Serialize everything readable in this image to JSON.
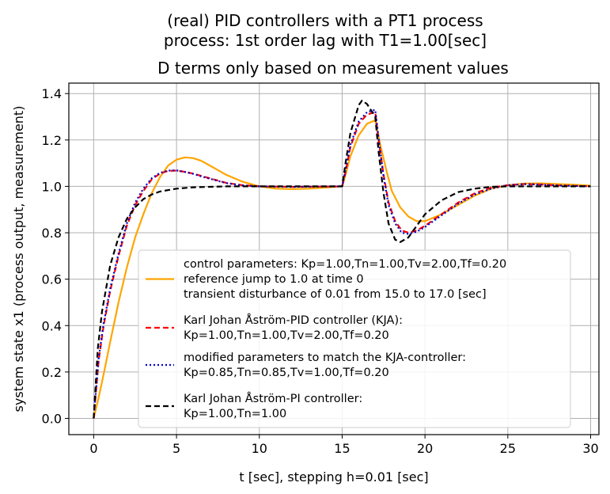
{
  "suptitle": [
    "(real) PID controllers with a PT1 process",
    "process: 1st order lag with T1=1.00[sec]"
  ],
  "chart_data": {
    "type": "line",
    "title": "D terms only based on measurement values",
    "xlabel": "t [sec], stepping h=0.01 [sec]",
    "ylabel": "system state x1 (process output, measurement)",
    "xlim": [
      -1.5,
      30.5
    ],
    "ylim": [
      -0.07,
      1.445
    ],
    "xticks": [
      0,
      5,
      10,
      15,
      20,
      25,
      30
    ],
    "xtick_labels": [
      "0",
      "5",
      "10",
      "15",
      "20",
      "25",
      "30"
    ],
    "yticks": [
      0.0,
      0.2,
      0.4,
      0.6,
      0.8,
      1.0,
      1.2,
      1.4
    ],
    "ytick_labels": [
      "0.0",
      "0.2",
      "0.4",
      "0.6",
      "0.8",
      "1.0",
      "1.2",
      "1.4"
    ],
    "grid": true,
    "legend_position": "lower-right",
    "series": [
      {
        "name": "control parameters: Kp=1.00,Tn=1.00,Tv=2.00,Tf=0.20\nreference jump to 1.0 at time 0\ntransient disturbance of 0.01 from 15.0 to 17.0 [sec]",
        "color": "#ffa500",
        "dash": "solid",
        "points": [
          [
            0,
            0
          ],
          [
            0.3,
            0.09
          ],
          [
            0.6,
            0.19
          ],
          [
            1,
            0.33
          ],
          [
            1.5,
            0.5
          ],
          [
            2,
            0.65
          ],
          [
            2.5,
            0.78
          ],
          [
            3,
            0.88
          ],
          [
            3.5,
            0.97
          ],
          [
            4,
            1.04
          ],
          [
            4.5,
            1.09
          ],
          [
            5,
            1.115
          ],
          [
            5.5,
            1.125
          ],
          [
            6,
            1.122
          ],
          [
            6.5,
            1.11
          ],
          [
            7,
            1.09
          ],
          [
            8,
            1.05
          ],
          [
            9,
            1.02
          ],
          [
            10,
            1.0
          ],
          [
            11,
            0.99
          ],
          [
            12,
            0.988
          ],
          [
            13,
            0.99
          ],
          [
            14,
            0.995
          ],
          [
            15,
            1.0
          ],
          [
            15.2,
            1.05
          ],
          [
            15.5,
            1.13
          ],
          [
            16,
            1.22
          ],
          [
            16.5,
            1.27
          ],
          [
            17,
            1.285
          ],
          [
            17.3,
            1.18
          ],
          [
            17.7,
            1.06
          ],
          [
            18,
            0.98
          ],
          [
            18.5,
            0.91
          ],
          [
            19,
            0.87
          ],
          [
            19.5,
            0.85
          ],
          [
            20,
            0.85
          ],
          [
            21,
            0.88
          ],
          [
            22,
            0.92
          ],
          [
            23,
            0.96
          ],
          [
            24,
            0.99
          ],
          [
            25,
            1.005
          ],
          [
            26,
            1.012
          ],
          [
            27,
            1.013
          ],
          [
            28,
            1.01
          ],
          [
            29,
            1.007
          ],
          [
            30,
            1.003
          ]
        ]
      },
      {
        "name": "Karl Johan Åström-PID controller (KJA):\nKp=1.00,Tn=1.00,Tv=2.00,Tf=0.20",
        "color": "#ff0000",
        "dash": "dashed",
        "points": [
          [
            0,
            0
          ],
          [
            0.3,
            0.25
          ],
          [
            0.6,
            0.4
          ],
          [
            1,
            0.55
          ],
          [
            1.5,
            0.7
          ],
          [
            2,
            0.83
          ],
          [
            2.5,
            0.92
          ],
          [
            3,
            0.98
          ],
          [
            3.5,
            1.03
          ],
          [
            4,
            1.055
          ],
          [
            4.5,
            1.067
          ],
          [
            5,
            1.068
          ],
          [
            5.5,
            1.063
          ],
          [
            6,
            1.055
          ],
          [
            6.5,
            1.045
          ],
          [
            7,
            1.035
          ],
          [
            8,
            1.015
          ],
          [
            9,
            1.005
          ],
          [
            10,
            1.0
          ],
          [
            12,
            0.998
          ],
          [
            15,
            1.0
          ],
          [
            15.2,
            1.06
          ],
          [
            15.5,
            1.17
          ],
          [
            16,
            1.27
          ],
          [
            16.5,
            1.31
          ],
          [
            17,
            1.32
          ],
          [
            17.2,
            1.2
          ],
          [
            17.5,
            1.05
          ],
          [
            17.8,
            0.93
          ],
          [
            18.2,
            0.85
          ],
          [
            18.6,
            0.81
          ],
          [
            19,
            0.8
          ],
          [
            19.5,
            0.81
          ],
          [
            20,
            0.83
          ],
          [
            21,
            0.88
          ],
          [
            22,
            0.93
          ],
          [
            23,
            0.97
          ],
          [
            24,
            0.995
          ],
          [
            25,
            1.005
          ],
          [
            26,
            1.01
          ],
          [
            27,
            1.008
          ],
          [
            28,
            1.004
          ],
          [
            30,
            1.0
          ]
        ]
      },
      {
        "name": "modified parameters to match the KJA-controller:\nKp=0.85,Tn=0.85,Tv=1.00,Tf=0.20",
        "color": "#0000cc",
        "dash": "dotted",
        "points": [
          [
            0,
            0
          ],
          [
            0.3,
            0.26
          ],
          [
            0.6,
            0.41
          ],
          [
            1,
            0.56
          ],
          [
            1.5,
            0.71
          ],
          [
            2,
            0.84
          ],
          [
            2.5,
            0.93
          ],
          [
            3,
            0.99
          ],
          [
            3.5,
            1.035
          ],
          [
            4,
            1.058
          ],
          [
            4.5,
            1.068
          ],
          [
            5,
            1.069
          ],
          [
            5.5,
            1.062
          ],
          [
            6,
            1.054
          ],
          [
            6.5,
            1.043
          ],
          [
            7,
            1.033
          ],
          [
            8,
            1.014
          ],
          [
            9,
            1.004
          ],
          [
            10,
            1.0
          ],
          [
            12,
            0.998
          ],
          [
            15,
            1.0
          ],
          [
            15.2,
            1.07
          ],
          [
            15.5,
            1.18
          ],
          [
            16,
            1.28
          ],
          [
            16.5,
            1.32
          ],
          [
            17,
            1.33
          ],
          [
            17.2,
            1.21
          ],
          [
            17.5,
            1.04
          ],
          [
            17.8,
            0.92
          ],
          [
            18.2,
            0.84
          ],
          [
            18.6,
            0.8
          ],
          [
            19,
            0.795
          ],
          [
            19.5,
            0.805
          ],
          [
            20,
            0.825
          ],
          [
            21,
            0.875
          ],
          [
            22,
            0.925
          ],
          [
            23,
            0.965
          ],
          [
            24,
            0.99
          ],
          [
            25,
            1.005
          ],
          [
            26,
            1.01
          ],
          [
            27,
            1.008
          ],
          [
            28,
            1.004
          ],
          [
            30,
            1.0
          ]
        ]
      },
      {
        "name": "Karl Johan Åström-PI controller:\nKp=1.00,Tn=1.00",
        "color": "#000000",
        "dash": "dashed",
        "points": [
          [
            0,
            0
          ],
          [
            0.25,
            0.3
          ],
          [
            0.5,
            0.46
          ],
          [
            1,
            0.66
          ],
          [
            1.5,
            0.78
          ],
          [
            2,
            0.86
          ],
          [
            2.5,
            0.91
          ],
          [
            3,
            0.945
          ],
          [
            3.5,
            0.965
          ],
          [
            4,
            0.978
          ],
          [
            5,
            0.99
          ],
          [
            6,
            0.996
          ],
          [
            7,
            0.998
          ],
          [
            8,
            1.0
          ],
          [
            15,
            1.0
          ],
          [
            15.2,
            1.1
          ],
          [
            15.5,
            1.23
          ],
          [
            16,
            1.35
          ],
          [
            16.2,
            1.37
          ],
          [
            16.5,
            1.355
          ],
          [
            17,
            1.3
          ],
          [
            17.2,
            1.15
          ],
          [
            17.5,
            0.97
          ],
          [
            17.8,
            0.84
          ],
          [
            18.2,
            0.77
          ],
          [
            18.5,
            0.76
          ],
          [
            19,
            0.78
          ],
          [
            19.5,
            0.83
          ],
          [
            20,
            0.88
          ],
          [
            21,
            0.94
          ],
          [
            22,
            0.975
          ],
          [
            23,
            0.99
          ],
          [
            24,
            0.998
          ],
          [
            25,
            1.0
          ],
          [
            30,
            1.0
          ]
        ]
      }
    ]
  }
}
